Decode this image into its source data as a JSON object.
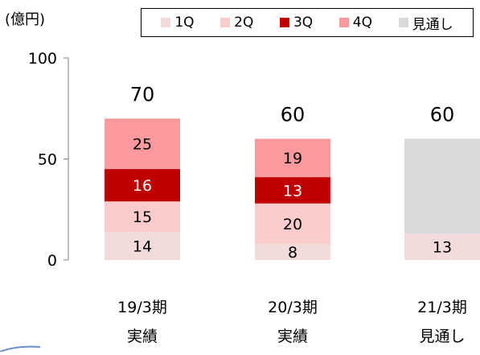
{
  "unit_label": "(億円)",
  "colors": {
    "1Q": "#f2dcdb",
    "2Q": "#fccbcb",
    "3Q": "#c00000",
    "4Q": "#fa9a9e",
    "forecast": "#d9d9d9",
    "axis": "#808080"
  },
  "legend": [
    {
      "name": "1Q",
      "color_key": "1Q"
    },
    {
      "name": "2Q",
      "color_key": "2Q"
    },
    {
      "name": "3Q",
      "color_key": "3Q"
    },
    {
      "name": "4Q",
      "color_key": "4Q"
    },
    {
      "name": "見通し",
      "color_key": "forecast"
    }
  ],
  "chart_data": {
    "type": "bar",
    "stacked": true,
    "ylim": [
      0,
      100
    ],
    "yticks": [
      0,
      50,
      100
    ],
    "categories": [
      {
        "line1": "19/3期",
        "line2": "実績"
      },
      {
        "line1": "20/3期",
        "line2": "実績"
      },
      {
        "line1": "21/3期",
        "line2": "見通し"
      }
    ],
    "series": [
      {
        "name": "1Q",
        "values": [
          14,
          8,
          13
        ]
      },
      {
        "name": "2Q",
        "values": [
          15,
          20,
          0
        ]
      },
      {
        "name": "3Q",
        "values": [
          16,
          13,
          0
        ]
      },
      {
        "name": "4Q",
        "values": [
          25,
          19,
          0
        ]
      },
      {
        "name": "見通し",
        "values": [
          0,
          0,
          47
        ]
      }
    ],
    "segment_labels": [
      [
        "14",
        "8",
        "13"
      ],
      [
        "15",
        "20",
        ""
      ],
      [
        "16",
        "13",
        ""
      ],
      [
        "25",
        "19",
        ""
      ],
      [
        "",
        "",
        ""
      ]
    ],
    "totals": [
      "70",
      "60",
      "60"
    ]
  }
}
